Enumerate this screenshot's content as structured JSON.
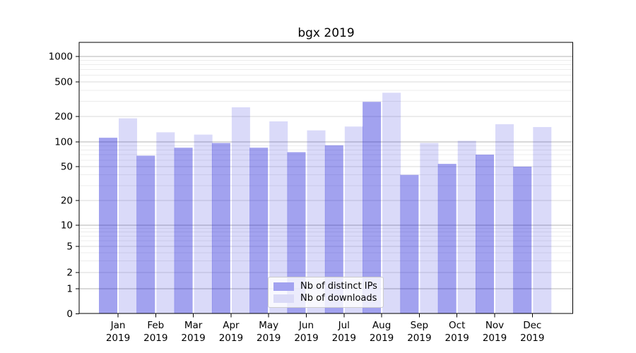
{
  "chart_data": {
    "type": "bar",
    "title": "bgx 2019",
    "categories": [
      "Jan 2019",
      "Feb 2019",
      "Mar 2019",
      "Apr 2019",
      "May 2019",
      "Jun 2019",
      "Jul 2019",
      "Aug 2019",
      "Sep 2019",
      "Oct 2019",
      "Nov 2019",
      "Dec 2019"
    ],
    "series": [
      {
        "name": "Nb of distinct IPs",
        "color": "#a2a2f0",
        "fill_opacity": 0.405,
        "values": [
          112,
          68,
          85,
          97,
          85,
          75,
          91,
          295,
          40,
          54,
          70,
          50
        ]
      },
      {
        "name": "Nb of downloads",
        "color": "#dadaf7",
        "fill_opacity": 0.16,
        "values": [
          190,
          130,
          122,
          255,
          175,
          137,
          152,
          375,
          97,
          103,
          162,
          150
        ]
      }
    ],
    "bar_base_color": "#1919d7",
    "yscale": "symlog",
    "yticks": [
      0,
      1,
      2,
      5,
      10,
      20,
      50,
      100,
      200,
      500,
      1000
    ],
    "minor_gridline_values": [
      3,
      4,
      6,
      7,
      8,
      9,
      30,
      40,
      60,
      70,
      80,
      90,
      300,
      400,
      600,
      700,
      800,
      900
    ],
    "ylim": [
      0,
      1600
    ],
    "xlabel": "",
    "ylabel": "",
    "grid": true,
    "legend_position": "lower center",
    "colors": {
      "grid_major_power10": "#b3b3b3",
      "grid_major_other": "#d9d9d9",
      "grid_minor": "#ececec",
      "spine": "#000000",
      "text": "#000000"
    }
  }
}
